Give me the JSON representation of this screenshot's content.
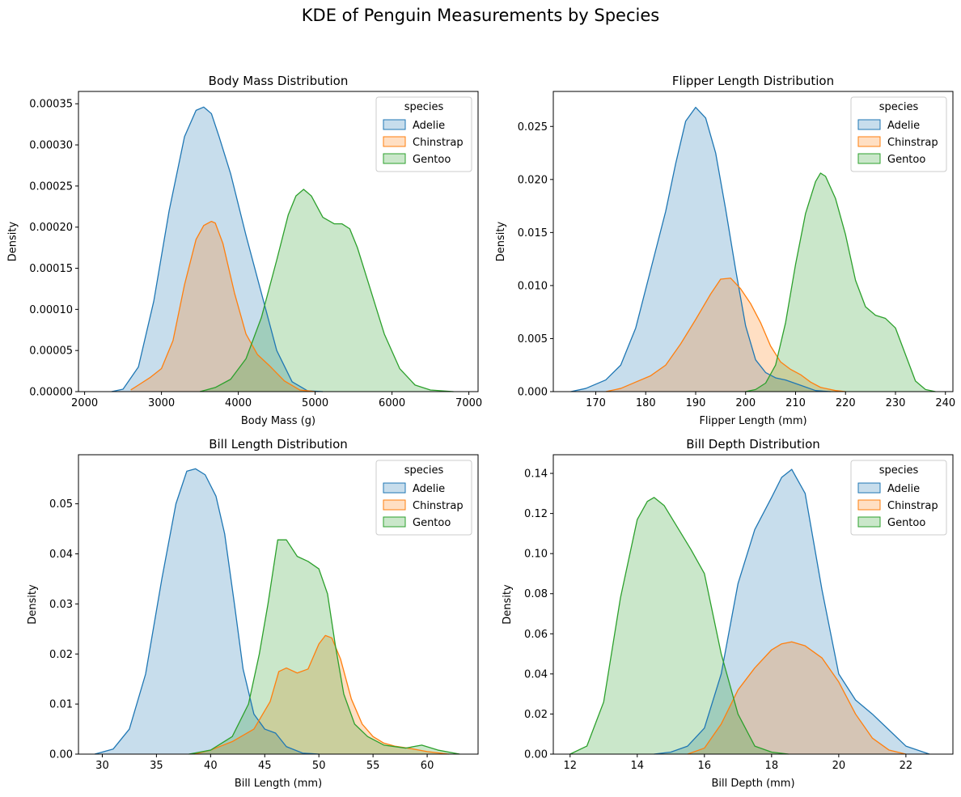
{
  "suptitle": "KDE of Penguin Measurements by Species",
  "legend_title": "species",
  "colors": {
    "Adelie": "#1f77b4",
    "Chinstrap": "#ff7f0e",
    "Gentoo": "#2ca02c"
  },
  "chart_data": [
    {
      "type": "area",
      "title": "Body Mass Distribution",
      "xlabel": "Body Mass (g)",
      "ylabel": "Density",
      "xlim": [
        1920,
        7120
      ],
      "ylim": [
        0,
        0.000365
      ],
      "xticks": [
        2000,
        3000,
        4000,
        5000,
        6000,
        7000
      ],
      "xtick_labels": [
        "2000",
        "3000",
        "4000",
        "5000",
        "6000",
        "7000"
      ],
      "yticks": [
        0,
        5e-05,
        0.0001,
        0.00015,
        0.0002,
        0.00025,
        0.0003,
        0.00035
      ],
      "ytick_labels": [
        "0.00000",
        "0.00005",
        "0.00010",
        "0.00015",
        "0.00020",
        "0.00025",
        "0.00030",
        "0.00035"
      ],
      "legend_position": "upper right",
      "series": [
        {
          "name": "Adelie",
          "x": [
            2350,
            2500,
            2700,
            2900,
            3100,
            3300,
            3450,
            3550,
            3650,
            3750,
            3900,
            4100,
            4300,
            4500,
            4700,
            4900,
            5100
          ],
          "y": [
            0.0,
            3e-06,
            3e-05,
            0.00011,
            0.00022,
            0.00031,
            0.000342,
            0.000346,
            0.000338,
            0.00031,
            0.000265,
            0.00019,
            0.00012,
            5e-05,
            1.2e-05,
            1e-06,
            0.0
          ]
        },
        {
          "name": "Chinstrap",
          "x": [
            2600,
            2700,
            2850,
            3000,
            3150,
            3300,
            3450,
            3550,
            3650,
            3700,
            3800,
            3950,
            4100,
            4250,
            4400,
            4600,
            4800,
            5000
          ],
          "y": [
            2e-06,
            8e-06,
            1.7e-05,
            2.8e-05,
            6.2e-05,
            0.00013,
            0.000185,
            0.000202,
            0.000207,
            0.000205,
            0.00018,
            0.00012,
            7e-05,
            4.5e-05,
            3.2e-05,
            1.3e-05,
            2e-06,
            0.0
          ]
        },
        {
          "name": "Gentoo",
          "x": [
            3500,
            3700,
            3900,
            4100,
            4300,
            4500,
            4650,
            4750,
            4850,
            4950,
            5100,
            5250,
            5350,
            5450,
            5550,
            5700,
            5900,
            6100,
            6300,
            6500,
            6800
          ],
          "y": [
            0.0,
            5e-06,
            1.5e-05,
            4e-05,
            9e-05,
            0.00016,
            0.000215,
            0.000238,
            0.000246,
            0.000238,
            0.000212,
            0.000204,
            0.000204,
            0.000198,
            0.000175,
            0.00013,
            7e-05,
            2.8e-05,
            8e-06,
            2e-06,
            0.0
          ]
        }
      ]
    },
    {
      "type": "area",
      "title": "Flipper Length Distribution",
      "xlabel": "Flipper Length (mm)",
      "ylabel": "Density",
      "xlim": [
        161.5,
        241.5
      ],
      "ylim": [
        0,
        0.0283
      ],
      "xticks": [
        170,
        180,
        190,
        200,
        210,
        220,
        230,
        240
      ],
      "xtick_labels": [
        "170",
        "180",
        "190",
        "200",
        "210",
        "220",
        "230",
        "240"
      ],
      "yticks": [
        0,
        0.005,
        0.01,
        0.015,
        0.02,
        0.025
      ],
      "ytick_labels": [
        "0.000",
        "0.005",
        "0.010",
        "0.015",
        "0.020",
        "0.025"
      ],
      "legend_position": "upper right",
      "series": [
        {
          "name": "Adelie",
          "x": [
            165,
            168,
            172,
            175,
            178,
            181,
            184,
            186,
            188,
            190,
            192,
            194,
            196,
            198,
            200,
            202,
            204,
            206,
            208,
            211,
            214,
            217
          ],
          "y": [
            0.0,
            0.0003,
            0.0011,
            0.0025,
            0.006,
            0.0115,
            0.017,
            0.0215,
            0.0255,
            0.0268,
            0.0258,
            0.0225,
            0.0172,
            0.0115,
            0.0062,
            0.003,
            0.0018,
            0.0013,
            0.0011,
            0.0006,
            0.0001,
            0.0
          ]
        },
        {
          "name": "Chinstrap",
          "x": [
            172,
            175,
            178,
            181,
            184,
            187,
            190,
            193,
            195,
            197,
            199,
            201,
            203,
            205,
            207,
            209,
            211,
            213,
            215,
            218,
            220
          ],
          "y": [
            0.0,
            0.0003,
            0.0009,
            0.0015,
            0.0025,
            0.0045,
            0.0068,
            0.0092,
            0.0106,
            0.0107,
            0.0097,
            0.0083,
            0.0065,
            0.0043,
            0.0028,
            0.0021,
            0.0016,
            0.0009,
            0.0004,
            0.0001,
            0.0
          ]
        },
        {
          "name": "Gentoo",
          "x": [
            200,
            202,
            204,
            206,
            208,
            210,
            212,
            214,
            215,
            216,
            218,
            220,
            222,
            224,
            226,
            228,
            230,
            232,
            234,
            236,
            238
          ],
          "y": [
            0.0,
            0.0002,
            0.0008,
            0.0025,
            0.0065,
            0.012,
            0.0168,
            0.0198,
            0.0206,
            0.0203,
            0.0182,
            0.0148,
            0.0105,
            0.008,
            0.0072,
            0.0069,
            0.006,
            0.0035,
            0.001,
            0.0002,
            0.0
          ]
        }
      ]
    },
    {
      "type": "area",
      "title": "Bill Length Distribution",
      "xlabel": "Bill Length (mm)",
      "ylabel": "Density",
      "xlim": [
        27.8,
        64.7
      ],
      "ylim": [
        0,
        0.0598
      ],
      "xticks": [
        30,
        35,
        40,
        45,
        50,
        55,
        60
      ],
      "xtick_labels": [
        "30",
        "35",
        "40",
        "45",
        "50",
        "55",
        "60"
      ],
      "yticks": [
        0,
        0.01,
        0.02,
        0.03,
        0.04,
        0.05
      ],
      "ytick_labels": [
        "0.00",
        "0.01",
        "0.02",
        "0.03",
        "0.04",
        "0.05"
      ],
      "legend_position": "upper right",
      "series": [
        {
          "name": "Adelie",
          "x": [
            29.3,
            31,
            32.5,
            34,
            35.5,
            36.8,
            37.8,
            38.6,
            39.5,
            40.5,
            41.3,
            42.2,
            43,
            44,
            45,
            46,
            47,
            48.5,
            50
          ],
          "y": [
            0.0,
            0.001,
            0.005,
            0.016,
            0.035,
            0.05,
            0.0565,
            0.057,
            0.0558,
            0.0515,
            0.044,
            0.03,
            0.017,
            0.008,
            0.005,
            0.0042,
            0.0015,
            0.0002,
            0.0
          ]
        },
        {
          "name": "Chinstrap",
          "x": [
            38.5,
            40,
            42,
            44,
            45.5,
            46.3,
            47,
            48,
            49,
            50,
            50.6,
            51.2,
            52,
            53,
            54,
            55,
            56,
            57,
            58.5,
            60,
            62
          ],
          "y": [
            0.0,
            0.0008,
            0.0025,
            0.005,
            0.0105,
            0.0165,
            0.0172,
            0.0162,
            0.017,
            0.022,
            0.0237,
            0.0232,
            0.019,
            0.011,
            0.006,
            0.0035,
            0.0022,
            0.0016,
            0.0011,
            0.0005,
            0.0
          ]
        },
        {
          "name": "Gentoo",
          "x": [
            38,
            40,
            42,
            43.5,
            44.5,
            45.3,
            46.2,
            47,
            48,
            49,
            50,
            50.8,
            51.5,
            52.3,
            53.3,
            54.5,
            56,
            58,
            59.5,
            61,
            63
          ],
          "y": [
            0.0,
            0.0008,
            0.0035,
            0.01,
            0.02,
            0.03,
            0.0428,
            0.0428,
            0.0395,
            0.0385,
            0.037,
            0.032,
            0.022,
            0.012,
            0.006,
            0.0035,
            0.0018,
            0.0012,
            0.0018,
            0.0008,
            0.0
          ]
        }
      ]
    },
    {
      "type": "area",
      "title": "Bill Depth Distribution",
      "xlabel": "Bill Depth (mm)",
      "ylabel": "Density",
      "xlim": [
        11.5,
        23.4
      ],
      "ylim": [
        0,
        0.1493
      ],
      "xticks": [
        12,
        14,
        16,
        18,
        20,
        22
      ],
      "xtick_labels": [
        "12",
        "14",
        "16",
        "18",
        "20",
        "22"
      ],
      "yticks": [
        0,
        0.02,
        0.04,
        0.06,
        0.08,
        0.1,
        0.12,
        0.14
      ],
      "ytick_labels": [
        "0.00",
        "0.02",
        "0.04",
        "0.06",
        "0.08",
        "0.10",
        "0.12",
        "0.14"
      ],
      "legend_position": "upper right",
      "series": [
        {
          "name": "Adelie",
          "x": [
            14.5,
            15,
            15.5,
            16,
            16.5,
            17,
            17.5,
            18,
            18.3,
            18.6,
            19,
            19.5,
            20,
            20.5,
            21,
            21.5,
            22,
            22.7
          ],
          "y": [
            0.0,
            0.001,
            0.004,
            0.013,
            0.04,
            0.085,
            0.112,
            0.128,
            0.138,
            0.142,
            0.13,
            0.082,
            0.04,
            0.027,
            0.02,
            0.012,
            0.004,
            0.0
          ]
        },
        {
          "name": "Chinstrap",
          "x": [
            15.5,
            16,
            16.5,
            17,
            17.5,
            18,
            18.3,
            18.6,
            19,
            19.5,
            20,
            20.5,
            21,
            21.5,
            22
          ],
          "y": [
            0.0,
            0.003,
            0.015,
            0.032,
            0.043,
            0.052,
            0.055,
            0.056,
            0.054,
            0.048,
            0.036,
            0.02,
            0.008,
            0.002,
            0.0
          ]
        },
        {
          "name": "Gentoo",
          "x": [
            12,
            12.5,
            13,
            13.5,
            14,
            14.3,
            14.5,
            14.8,
            15.2,
            15.6,
            16,
            16.5,
            17,
            17.5,
            18,
            18.5
          ],
          "y": [
            0.0,
            0.004,
            0.026,
            0.078,
            0.117,
            0.126,
            0.128,
            0.124,
            0.113,
            0.102,
            0.09,
            0.05,
            0.02,
            0.004,
            0.001,
            0.0
          ]
        }
      ]
    }
  ]
}
